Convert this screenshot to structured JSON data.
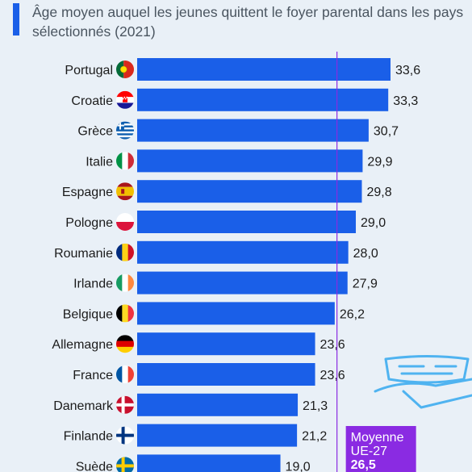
{
  "subtitle": "Âge moyen auquel les jeunes quittent le foyer parental dans les pays sélectionnés (2021)",
  "colors": {
    "bar": "#1a5fe8",
    "average": "#8a2be2",
    "background": "#e9f0f7"
  },
  "chart_data": {
    "type": "bar",
    "orientation": "horizontal",
    "title": "",
    "categories": [
      "Portugal",
      "Croatie",
      "Grèce",
      "Italie",
      "Espagne",
      "Pologne",
      "Roumanie",
      "Irlande",
      "Belgique",
      "Allemagne",
      "France",
      "Danemark",
      "Finlande",
      "Suède"
    ],
    "values": [
      33.6,
      33.3,
      30.7,
      29.9,
      29.8,
      29.0,
      28.0,
      27.9,
      26.2,
      23.6,
      23.6,
      21.3,
      21.2,
      19.0
    ],
    "value_labels": [
      "33,6",
      "33,3",
      "30,7",
      "29,9",
      "29,8",
      "29,0",
      "28,0",
      "27,9",
      "26,2",
      "23,6",
      "23,6",
      "21,3",
      "21,2",
      "19,0"
    ],
    "flags": [
      "portugal-flag-icon",
      "croatia-flag-icon",
      "greece-flag-icon",
      "italy-flag-icon",
      "spain-flag-icon",
      "poland-flag-icon",
      "romania-flag-icon",
      "ireland-flag-icon",
      "belgium-flag-icon",
      "germany-flag-icon",
      "france-flag-icon",
      "denmark-flag-icon",
      "finland-flag-icon",
      "sweden-flag-icon"
    ],
    "xlim": [
      0,
      33.6
    ],
    "grid": false,
    "reference_line": {
      "value": 26.5,
      "label_lines": [
        "Moyenne",
        "UE-27",
        "26,5"
      ]
    }
  }
}
